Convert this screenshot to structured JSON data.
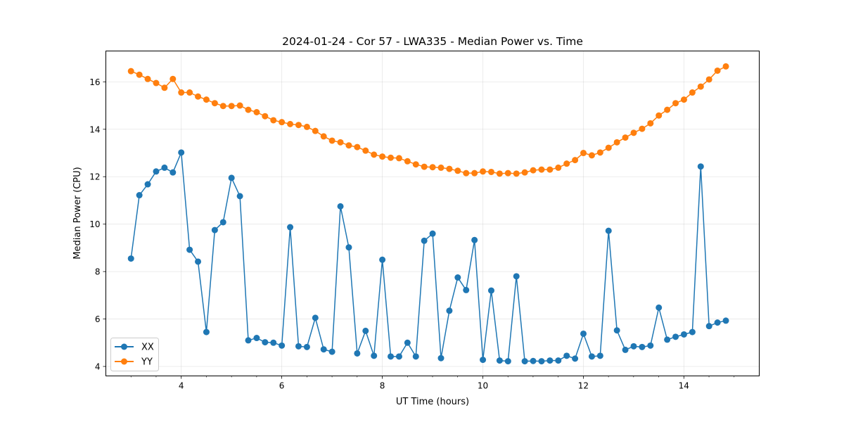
{
  "chart_data": {
    "type": "line",
    "title": "2024-01-24 - Cor 57 - LWA335 - Median Power vs. Time",
    "xlabel": "UT Time (hours)",
    "ylabel": "Median Power (CPU)",
    "xlim": [
      2.5,
      15.5
    ],
    "ylim": [
      3.6,
      17.3
    ],
    "xticks": [
      4,
      6,
      8,
      10,
      12,
      14
    ],
    "xtick_labels": [
      "4",
      "6",
      "8",
      "10",
      "12",
      "14"
    ],
    "yticks": [
      4,
      6,
      8,
      10,
      12,
      14,
      16
    ],
    "ytick_labels": [
      "4",
      "6",
      "8",
      "10",
      "12",
      "14",
      "16"
    ],
    "grid": true,
    "legend_position": "lower-left",
    "x_start": 3.0,
    "x_step": 0.1667,
    "series": [
      {
        "name": "XX",
        "color": "#1f77b4",
        "values": [
          8.55,
          11.22,
          11.68,
          12.22,
          12.38,
          12.18,
          13.02,
          8.92,
          8.42,
          5.45,
          9.75,
          10.08,
          11.95,
          11.18,
          5.1,
          5.2,
          5.02,
          5.0,
          4.88,
          9.87,
          4.85,
          4.82,
          6.05,
          4.72,
          4.62,
          10.75,
          9.02,
          4.55,
          5.5,
          4.45,
          8.5,
          4.42,
          4.42,
          5.0,
          4.42,
          9.3,
          9.6,
          4.35,
          6.35,
          7.75,
          7.22,
          9.33,
          4.28,
          7.2,
          4.25,
          4.22,
          7.8,
          4.22,
          4.23,
          4.22,
          4.25,
          4.25,
          4.45,
          4.33,
          5.38,
          4.42,
          4.45,
          9.72,
          5.52,
          4.7,
          4.85,
          4.82,
          4.88,
          6.48,
          5.13,
          5.25,
          5.35,
          5.45,
          12.43,
          5.7,
          5.85,
          5.93
        ]
      },
      {
        "name": "YY",
        "color": "#ff7f0e",
        "values": [
          16.45,
          16.3,
          16.12,
          15.95,
          15.75,
          16.12,
          15.55,
          15.55,
          15.38,
          15.25,
          15.1,
          14.98,
          14.98,
          15.0,
          14.82,
          14.72,
          14.55,
          14.38,
          14.3,
          14.22,
          14.18,
          14.1,
          13.93,
          13.7,
          13.52,
          13.45,
          13.32,
          13.25,
          13.1,
          12.93,
          12.85,
          12.8,
          12.78,
          12.65,
          12.52,
          12.42,
          12.4,
          12.38,
          12.33,
          12.25,
          12.15,
          12.15,
          12.22,
          12.2,
          12.13,
          12.15,
          12.13,
          12.18,
          12.27,
          12.3,
          12.3,
          12.38,
          12.55,
          12.7,
          13.0,
          12.9,
          13.02,
          13.22,
          13.45,
          13.65,
          13.85,
          14.02,
          14.25,
          14.58,
          14.82,
          15.1,
          15.25,
          15.55,
          15.8,
          16.1,
          16.47,
          16.65
        ]
      }
    ]
  }
}
